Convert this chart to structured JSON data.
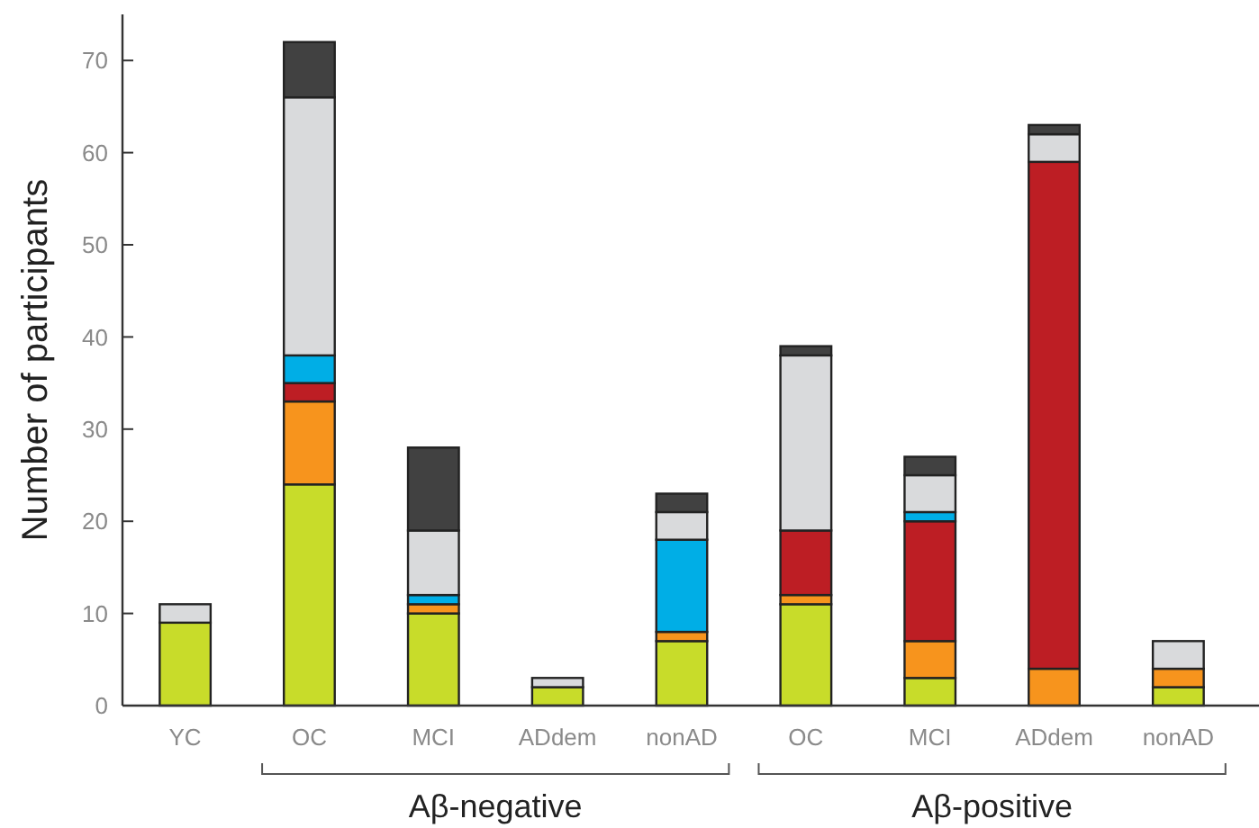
{
  "chart_data": {
    "type": "bar",
    "stacked": true,
    "ylabel": "Number of participants",
    "categories": [
      "YC",
      "OC",
      "MCI",
      "ADdem",
      "nonAD",
      "OC",
      "MCI",
      "ADdem",
      "nonAD"
    ],
    "series": [
      {
        "color": "#c8dc2a",
        "values": [
          9,
          24,
          10,
          2,
          7,
          11,
          3,
          0,
          2
        ]
      },
      {
        "color": "#f7941d",
        "values": [
          0,
          9,
          1,
          0,
          1,
          1,
          4,
          4,
          2
        ]
      },
      {
        "color": "#bd1e24",
        "values": [
          0,
          2,
          0,
          0,
          0,
          7,
          13,
          55,
          0
        ]
      },
      {
        "color": "#00aee6",
        "values": [
          0,
          3,
          1,
          0,
          10,
          0,
          1,
          0,
          0
        ]
      },
      {
        "color": "#d9dadc",
        "values": [
          2,
          28,
          7,
          1,
          3,
          19,
          4,
          3,
          3
        ]
      },
      {
        "color": "#414141",
        "values": [
          0,
          6,
          9,
          0,
          2,
          1,
          2,
          1,
          0
        ]
      }
    ],
    "ylim": [
      0,
      75
    ],
    "yticks": [
      0,
      10,
      20,
      30,
      40,
      50,
      60,
      70
    ],
    "grid": false,
    "annotations": [
      "Aβ-negative",
      "Aβ-positive"
    ]
  }
}
